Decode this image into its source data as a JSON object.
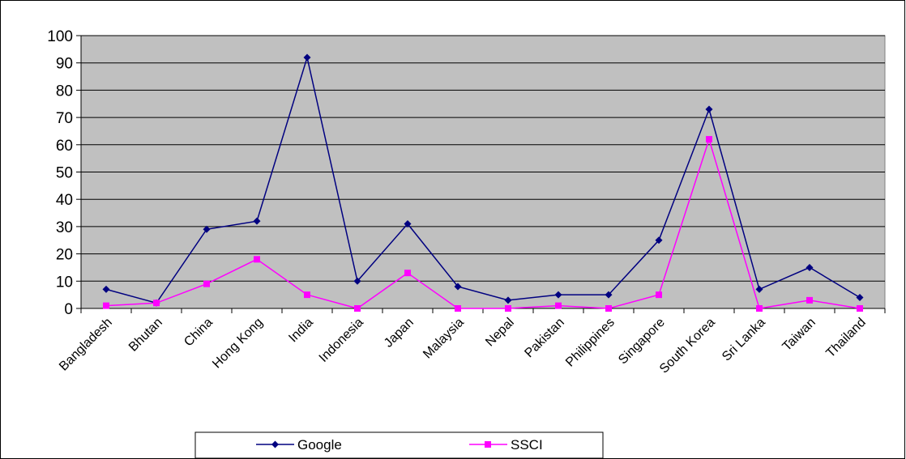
{
  "chart_data": {
    "type": "line",
    "title": "",
    "xlabel": "",
    "ylabel": "",
    "categories": [
      "Bangladesh",
      "Bhutan",
      "China",
      "Hong Kong",
      "India",
      "Indonesia",
      "Japan",
      "Malaysia",
      "Nepal",
      "Pakistan",
      "Philippines",
      "Singapore",
      "South Korea",
      "Sri Lanka",
      "Taiwan",
      "Thailand"
    ],
    "ylim": [
      0,
      100
    ],
    "yticks": [
      "0",
      "10",
      "20",
      "30",
      "40",
      "50",
      "60",
      "70",
      "80",
      "90",
      "100"
    ],
    "grid": true,
    "plot_background": "#c0c0c0",
    "legend_position": "bottom",
    "series": [
      {
        "name": "Google",
        "color": "#000080",
        "marker": "diamond",
        "values": [
          7,
          2,
          29,
          32,
          92,
          10,
          31,
          8,
          3,
          5,
          5,
          25,
          73,
          7,
          15,
          4
        ]
      },
      {
        "name": "SSCI",
        "color": "#ff00ff",
        "marker": "square",
        "values": [
          1,
          2,
          9,
          18,
          5,
          0,
          13,
          0,
          0,
          1,
          0,
          5,
          62,
          0,
          3,
          0
        ]
      }
    ]
  }
}
